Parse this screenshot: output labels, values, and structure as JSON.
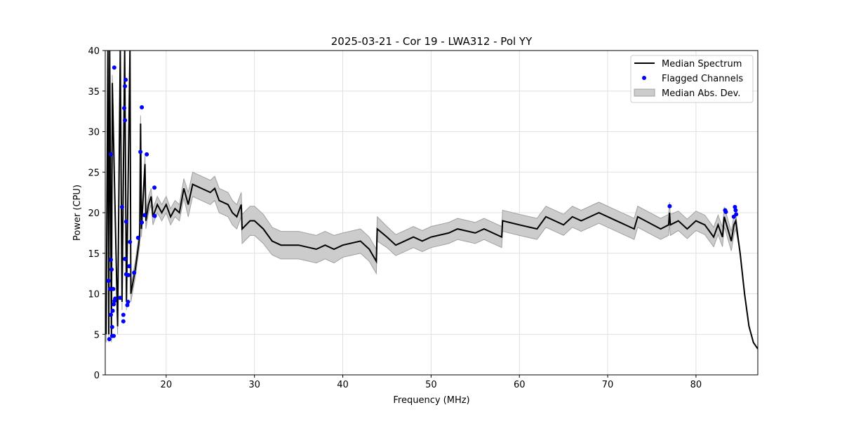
{
  "chart_data": {
    "type": "line",
    "title": "2025-03-21 - Cor 19 - LWA312 - Pol YY",
    "xlabel": "Frequency (MHz)",
    "ylabel": "Power (CPU)",
    "xlim": [
      13.1,
      87.0
    ],
    "ylim": [
      0,
      40
    ],
    "xticks": [
      20,
      30,
      40,
      50,
      60,
      70,
      80
    ],
    "yticks": [
      0,
      5,
      10,
      15,
      20,
      25,
      30,
      35,
      40
    ],
    "grid": true,
    "legend_position": "top-right",
    "legend": [
      "Median Spectrum",
      "Flagged Channels",
      "Median Abs. Dev."
    ],
    "colors": {
      "median": "#000000",
      "flagged": "#0000ff",
      "mad": "#cccccc",
      "mad_edge": "#a0a0a0"
    },
    "median_spectrum": {
      "x": [
        13.2,
        13.4,
        13.5,
        13.6,
        13.8,
        13.9,
        14.5,
        14.8,
        15.0,
        15.3,
        15.5,
        15.9,
        16.0,
        16.5,
        17.0,
        17.1,
        17.2,
        17.6,
        17.7,
        18.0,
        18.3,
        18.5,
        19,
        19.5,
        20,
        20.5,
        21,
        21.5,
        22,
        22.5,
        23,
        24,
        25,
        25.5,
        26,
        27,
        27.5,
        28,
        28.5,
        28.6,
        29.5,
        30,
        31,
        32,
        33,
        35,
        37,
        38,
        39,
        40,
        42,
        43,
        43.8,
        43.9,
        45,
        46,
        47,
        48,
        49,
        50,
        52,
        53,
        55,
        56,
        58,
        58.1,
        60,
        62,
        63,
        65,
        66,
        67,
        68,
        69,
        71,
        73,
        73.4,
        76,
        76.9,
        77,
        77.1,
        78,
        79,
        80,
        81,
        82,
        82.5,
        83,
        83.2,
        84,
        84.3,
        84.5,
        85,
        85.5,
        86,
        86.5,
        87
      ],
      "y": [
        5,
        40,
        5,
        40,
        5,
        36,
        6,
        40,
        9,
        40,
        9,
        40,
        10,
        13,
        17,
        31,
        18,
        26,
        19,
        21,
        22,
        19.5,
        21,
        20,
        21,
        19.5,
        20.5,
        20,
        23,
        21,
        23.5,
        23,
        22.5,
        23,
        21.5,
        21,
        20,
        19.5,
        21,
        18,
        19,
        19,
        18,
        16.5,
        16,
        16,
        15.5,
        16,
        15.5,
        16,
        16.5,
        15.5,
        14,
        18,
        17,
        16,
        16.5,
        17,
        16.5,
        17,
        17.5,
        18,
        17.5,
        18,
        17,
        19,
        18.5,
        18,
        19.5,
        18.5,
        19.5,
        19,
        19.5,
        20,
        19,
        18,
        19.5,
        18,
        18.5,
        20,
        18.5,
        19,
        18,
        19,
        18.5,
        17,
        18.5,
        17,
        19.5,
        16.5,
        18.5,
        19,
        15,
        10,
        6,
        4,
        3.2
      ],
      "mad": [
        1,
        1,
        1,
        1,
        1,
        1,
        1,
        1,
        1,
        1,
        1,
        1,
        1,
        1,
        1,
        1,
        1,
        1,
        1,
        1,
        1,
        1,
        1,
        1,
        1,
        1,
        1,
        1,
        1.2,
        1.5,
        1.5,
        1.5,
        1.5,
        1.5,
        1.5,
        1.5,
        1.5,
        1.5,
        1.5,
        1.8,
        1.8,
        1.8,
        1.8,
        1.7,
        1.7,
        1.7,
        1.7,
        1.7,
        1.7,
        1.5,
        1.5,
        1.5,
        1.5,
        1.5,
        1.3,
        1.3,
        1.3,
        1.3,
        1.3,
        1.3,
        1.3,
        1.3,
        1.3,
        1.3,
        1.3,
        1.3,
        1.3,
        1.3,
        1.3,
        1.3,
        1.3,
        1.3,
        1.3,
        1.3,
        1.3,
        1.3,
        1.3,
        1.3,
        1.3,
        1.3,
        1.3,
        1.2,
        1.2,
        1.2,
        1.2,
        1.2,
        1.2,
        1.2,
        1.2,
        1.2,
        1.2,
        1,
        0,
        0,
        0,
        0,
        0
      ]
    },
    "flagged_channels": {
      "x": [
        14.12,
        13.74,
        15.41,
        15.33,
        15.25,
        15.33,
        17.24,
        17.08,
        17.8,
        18.67,
        18.7,
        17.56,
        17.24,
        15.0,
        15.47,
        15.9,
        16.82,
        13.74,
        13.82,
        15.33,
        15.81,
        16.37,
        15.47,
        15.73,
        13.48,
        13.66,
        14.01,
        14.78,
        14.22,
        14.14,
        14.06,
        15.68,
        15.6,
        13.94,
        13.74,
        15.15,
        15.15,
        13.88,
        13.88,
        14.06,
        13.56,
        77.02,
        83.3,
        83.38,
        84.41,
        84.49,
        84.55,
        84.28
      ],
      "y": [
        37.9,
        27.2,
        36.4,
        35.6,
        32.9,
        31.4,
        33.0,
        27.5,
        27.2,
        23.1,
        19.6,
        19.7,
        18.8,
        20.7,
        18.9,
        16.4,
        16.9,
        14.2,
        13.0,
        14.3,
        13.4,
        12.6,
        12.4,
        12.3,
        11.6,
        10.6,
        10.6,
        9.5,
        9.4,
        9.1,
        8.7,
        9.0,
        8.6,
        7.9,
        7.4,
        7.4,
        6.6,
        5.9,
        4.8,
        4.8,
        4.4,
        20.8,
        20.3,
        20.1,
        20.7,
        20.3,
        19.8,
        19.5
      ]
    }
  }
}
